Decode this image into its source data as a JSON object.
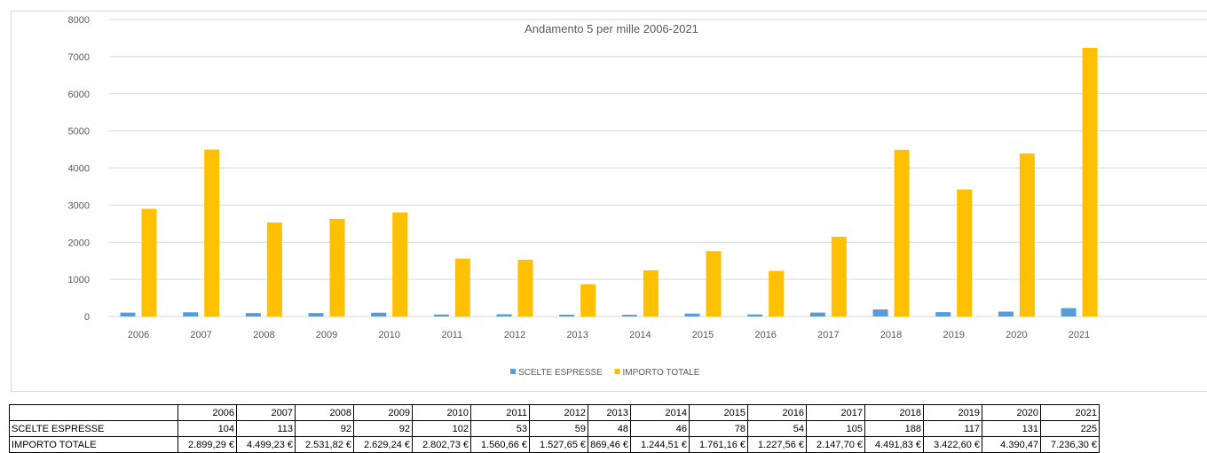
{
  "chart_data": {
    "type": "bar",
    "title": "Andamento 5 per mille 2006-2021",
    "categories": [
      "2006",
      "2007",
      "2008",
      "2009",
      "2010",
      "2011",
      "2012",
      "2013",
      "2014",
      "2015",
      "2016",
      "2017",
      "2018",
      "2019",
      "2020",
      "2021"
    ],
    "series": [
      {
        "name": "SCELTE ESPRESSE",
        "color": "#5b9bd5",
        "values": [
          104,
          113,
          92,
          92,
          102,
          53,
          59,
          48,
          46,
          78,
          54,
          105,
          188,
          117,
          131,
          225
        ]
      },
      {
        "name": "IMPORTO TOTALE",
        "color": "#ffc000",
        "values": [
          2899.29,
          4499.23,
          2531.82,
          2629.24,
          2802.73,
          1560.66,
          1527.65,
          869.46,
          1244.51,
          1761.16,
          1227.56,
          2147.7,
          4491.83,
          3422.6,
          4390.47,
          7236.3
        ]
      }
    ],
    "ylim": [
      0,
      8000
    ],
    "yticks": [
      "0",
      "1000",
      "2000",
      "3000",
      "4000",
      "5000",
      "6000",
      "7000",
      "8000"
    ],
    "grid": true,
    "legend_position": "bottom",
    "xlabel": "",
    "ylabel": ""
  },
  "table": {
    "rows": [
      {
        "label": "SCELTE ESPRESSE",
        "cells": [
          "104",
          "113",
          "92",
          "92",
          "102",
          "53",
          "59",
          "48",
          "46",
          "78",
          "54",
          "105",
          "188",
          "117",
          "131",
          "225"
        ]
      },
      {
        "label": "IMPORTO TOTALE",
        "cells": [
          "2.899,29 €",
          "4.499,23 €",
          "2.531,82 €",
          "2.629,24 €",
          "2.802,73 €",
          "1.560,66 €",
          "1.527,65 €",
          "869,46 €",
          "1.244,51 €",
          "1.761,16 €",
          "1.227,56 €",
          "2.147,70 €",
          "4.491,83 €",
          "3.422,60 €",
          "4.390,47",
          "7.236,30 €"
        ]
      }
    ]
  }
}
